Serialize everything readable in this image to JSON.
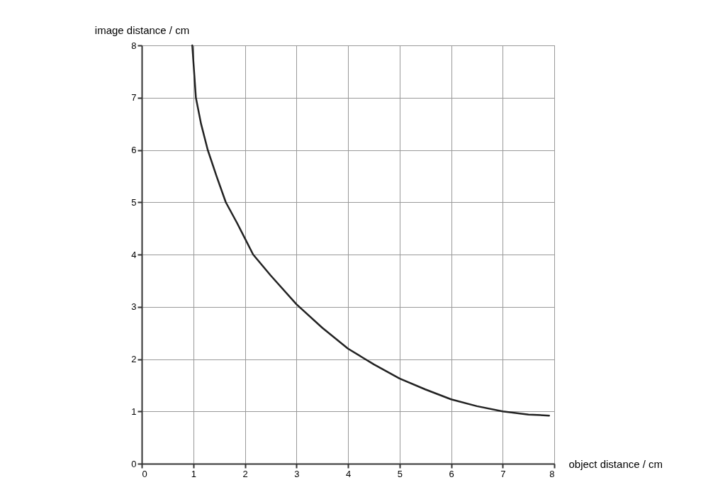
{
  "chart_data": {
    "type": "line",
    "xlabel": "object distance / cm",
    "ylabel": "image distance / cm",
    "x": [
      0.98,
      1.05,
      1.15,
      1.28,
      1.45,
      1.63,
      1.85,
      2,
      2.16,
      2.5,
      3,
      3.5,
      4,
      4.5,
      5,
      5.5,
      6,
      6.5,
      7,
      7.5,
      7.9
    ],
    "series": [
      {
        "color": "#222222",
        "values": [
          8,
          7,
          6.5,
          6,
          5.5,
          5,
          4.6,
          4.31,
          4,
          3.6,
          3.05,
          2.6,
          2.2,
          1.9,
          1.63,
          1.42,
          1.23,
          1.1,
          1.0,
          0.94,
          0.92
        ]
      }
    ],
    "xlim": [
      0,
      8
    ],
    "ylim": [
      0,
      8
    ],
    "xticks": [
      0,
      1,
      2,
      3,
      4,
      5,
      6,
      7,
      8
    ],
    "yticks": [
      0,
      1,
      2,
      3,
      4,
      5,
      6,
      7,
      8
    ],
    "grid": true,
    "marker": "none",
    "line_style": "solid"
  }
}
